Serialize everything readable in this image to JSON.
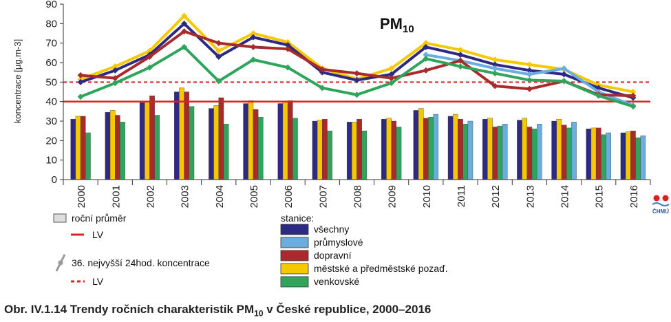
{
  "chart_data": {
    "type": "bar+line",
    "title": "PM",
    "title_sub": "10",
    "ylabel": "koncentrace [µg.m-3]",
    "ylim": [
      0,
      90
    ],
    "yticks": [
      0,
      10,
      20,
      30,
      40,
      50,
      60,
      70,
      80,
      90
    ],
    "categories": [
      "2000",
      "2001",
      "2002",
      "2003",
      "2004",
      "2005",
      "2006",
      "2007",
      "2008",
      "2009",
      "2010",
      "2011",
      "2012",
      "2013",
      "2014",
      "2015",
      "2016"
    ],
    "bar_series": [
      {
        "name": "všechny",
        "color": "#2e2a84",
        "values": [
          31,
          34.5,
          39.5,
          45,
          36.5,
          39,
          39,
          30,
          29.5,
          31,
          35.5,
          32.5,
          31,
          30.5,
          30,
          26,
          24
        ]
      },
      {
        "name": "průmyslové",
        "color": "#6aaee0",
        "values": [
          null,
          null,
          null,
          null,
          null,
          null,
          null,
          null,
          null,
          null,
          33.5,
          30,
          28.5,
          28.5,
          29.5,
          24,
          22.5
        ]
      },
      {
        "name": "dopravní",
        "color": "#a92a2a",
        "values": [
          32.5,
          33,
          43,
          45,
          42,
          36,
          40.5,
          31,
          31,
          30,
          31.5,
          31,
          27,
          27,
          28,
          26.5,
          25
        ]
      },
      {
        "name": "městské a předměstské pozaď.",
        "color": "#f5c800",
        "values": [
          32.5,
          35.5,
          40,
          47,
          38,
          40.5,
          40,
          30.5,
          29.5,
          31.5,
          36.5,
          33.5,
          31.5,
          31.5,
          31,
          26.5,
          24.5
        ]
      },
      {
        "name": "venkovské",
        "color": "#2ea55a",
        "values": [
          24,
          29.5,
          33,
          37.5,
          28.5,
          32,
          31.5,
          25,
          25,
          27,
          32,
          28.5,
          27.5,
          26,
          26.5,
          23,
          21.5
        ]
      }
    ],
    "bar_order": [
      "všechny",
      "městské a předměstské pozaď.",
      "dopravní",
      "venkovské",
      "průmyslové"
    ],
    "line_series": [
      {
        "name": "všechny",
        "color": "#2e2a84",
        "values": [
          50,
          56,
          64,
          80,
          63,
          73,
          69,
          55,
          51,
          54,
          68,
          64,
          59,
          56,
          54,
          47,
          42
        ]
      },
      {
        "name": "průmyslové",
        "color": "#6aaee0",
        "values": [
          null,
          null,
          null,
          null,
          null,
          null,
          null,
          null,
          null,
          null,
          64,
          61,
          57,
          54,
          57,
          45,
          38
        ]
      },
      {
        "name": "dopravní",
        "color": "#a92a2a",
        "values": [
          53.5,
          52,
          63,
          76,
          70,
          68,
          67,
          56.5,
          54.5,
          52,
          56,
          61,
          48,
          46.5,
          50.5,
          43.5,
          43
        ]
      },
      {
        "name": "městské a předměstské pozaď.",
        "color": "#f5c800",
        "values": [
          51.5,
          58,
          66,
          84,
          66,
          75,
          70.5,
          57,
          51.5,
          57,
          70,
          66.5,
          61.5,
          59,
          56.5,
          48.5,
          45
        ]
      },
      {
        "name": "venkovské",
        "color": "#2ea55a",
        "values": [
          42.5,
          49.5,
          57.5,
          68,
          50.5,
          61.5,
          57.5,
          47,
          43.5,
          49.5,
          62,
          58,
          54.5,
          51,
          50.5,
          43,
          37.5
        ]
      }
    ],
    "limit_lines": [
      {
        "label": "LV",
        "value": 40,
        "style": "solid",
        "color": "#e02020"
      },
      {
        "label": "LV",
        "value": 50,
        "style": "dashed",
        "color": "#e02020"
      }
    ],
    "legend": {
      "annual_mean_label": "roční průměr",
      "lv_label": "LV",
      "high36_label": "36. nejvyšší 24hod. koncentrace",
      "lv_dashed_label": "LV",
      "stations_header": "stanice:",
      "stations": [
        "všechny",
        "průmyslové",
        "dopravní",
        "městské a předměstské pozaď.",
        "venkovské"
      ]
    },
    "logo_text": "ČHMÚ"
  },
  "caption": {
    "prefix": "Obr. IV.1.14  Trendy ročních charakteristik PM",
    "sub": "10",
    "suffix": " v České republice, 2000–2016"
  },
  "colors": {
    "vsechny": "#2e2a84",
    "prumyslove": "#6aaee0",
    "dopravni": "#a92a2a",
    "mestske": "#f5c800",
    "venkovske": "#2ea55a",
    "lv": "#e02020"
  }
}
